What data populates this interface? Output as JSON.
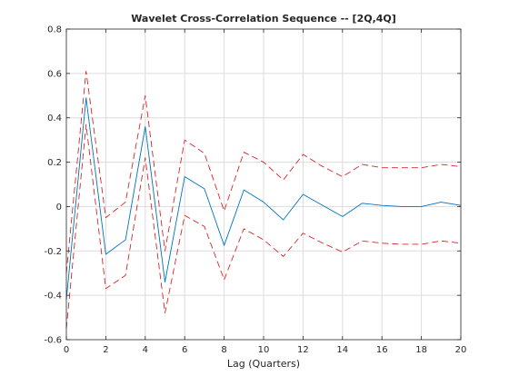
{
  "chart_data": {
    "type": "line",
    "title": "Wavelet Cross-Correlation Sequence -- [2Q,4Q]",
    "xlabel": "Lag (Quarters)",
    "ylabel": "",
    "xlim": [
      0,
      20
    ],
    "ylim": [
      -0.6,
      0.8
    ],
    "xticks": [
      0,
      2,
      4,
      6,
      8,
      10,
      12,
      14,
      16,
      18,
      20
    ],
    "yticks": [
      -0.6,
      -0.4,
      -0.2,
      0,
      0.2,
      0.4,
      0.6,
      0.8
    ],
    "grid": true,
    "x": [
      0,
      1,
      2,
      3,
      4,
      5,
      6,
      7,
      8,
      9,
      10,
      11,
      12,
      13,
      14,
      15,
      16,
      17,
      18,
      19,
      20
    ],
    "series": [
      {
        "role": "cross-correlation",
        "color": "#0072bd",
        "style": "solid",
        "values": [
          -0.42,
          0.49,
          -0.215,
          -0.15,
          0.36,
          -0.34,
          0.135,
          0.08,
          -0.175,
          0.075,
          0.02,
          -0.06,
          0.055,
          0.005,
          -0.045,
          0.015,
          0.005,
          0.0,
          0.0,
          0.02,
          0.005
        ]
      },
      {
        "role": "upper-bound",
        "color": "#d62728",
        "style": "dashed",
        "values": [
          -0.3,
          0.61,
          -0.05,
          0.02,
          0.5,
          -0.2,
          0.3,
          0.24,
          -0.02,
          0.245,
          0.2,
          0.12,
          0.235,
          0.18,
          0.135,
          0.19,
          0.175,
          0.175,
          0.175,
          0.19,
          0.18
        ]
      },
      {
        "role": "lower-bound",
        "color": "#d62728",
        "style": "dashed",
        "values": [
          -0.55,
          0.37,
          -0.37,
          -0.31,
          0.22,
          -0.48,
          -0.04,
          -0.09,
          -0.33,
          -0.1,
          -0.15,
          -0.225,
          -0.12,
          -0.165,
          -0.205,
          -0.155,
          -0.165,
          -0.17,
          -0.17,
          -0.155,
          -0.165
        ]
      }
    ]
  }
}
